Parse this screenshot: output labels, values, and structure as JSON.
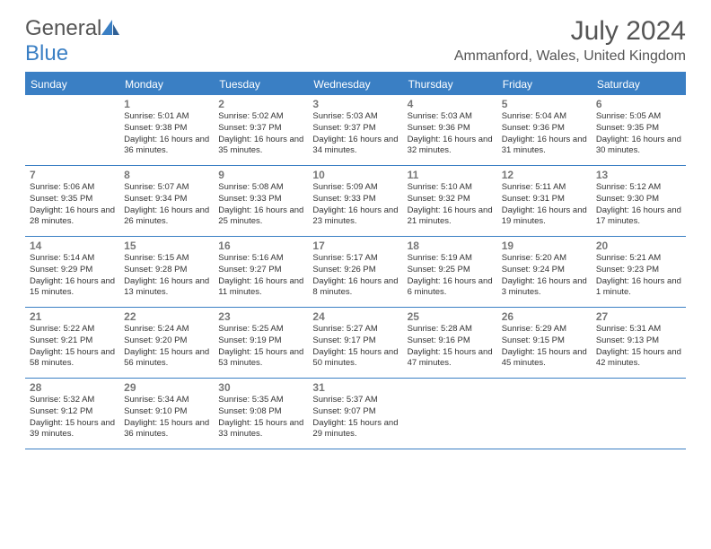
{
  "logo": {
    "text1": "General",
    "text2": "Blue"
  },
  "title": "July 2024",
  "location": "Ammanford, Wales, United Kingdom",
  "colors": {
    "header_bg": "#3a7fc4",
    "text": "#555555",
    "day_text": "#333333"
  },
  "dayNames": [
    "Sunday",
    "Monday",
    "Tuesday",
    "Wednesday",
    "Thursday",
    "Friday",
    "Saturday"
  ],
  "weeks": [
    [
      null,
      {
        "n": "1",
        "sr": "5:01 AM",
        "ss": "9:38 PM",
        "dl": "16 hours and 36 minutes."
      },
      {
        "n": "2",
        "sr": "5:02 AM",
        "ss": "9:37 PM",
        "dl": "16 hours and 35 minutes."
      },
      {
        "n": "3",
        "sr": "5:03 AM",
        "ss": "9:37 PM",
        "dl": "16 hours and 34 minutes."
      },
      {
        "n": "4",
        "sr": "5:03 AM",
        "ss": "9:36 PM",
        "dl": "16 hours and 32 minutes."
      },
      {
        "n": "5",
        "sr": "5:04 AM",
        "ss": "9:36 PM",
        "dl": "16 hours and 31 minutes."
      },
      {
        "n": "6",
        "sr": "5:05 AM",
        "ss": "9:35 PM",
        "dl": "16 hours and 30 minutes."
      }
    ],
    [
      {
        "n": "7",
        "sr": "5:06 AM",
        "ss": "9:35 PM",
        "dl": "16 hours and 28 minutes."
      },
      {
        "n": "8",
        "sr": "5:07 AM",
        "ss": "9:34 PM",
        "dl": "16 hours and 26 minutes."
      },
      {
        "n": "9",
        "sr": "5:08 AM",
        "ss": "9:33 PM",
        "dl": "16 hours and 25 minutes."
      },
      {
        "n": "10",
        "sr": "5:09 AM",
        "ss": "9:33 PM",
        "dl": "16 hours and 23 minutes."
      },
      {
        "n": "11",
        "sr": "5:10 AM",
        "ss": "9:32 PM",
        "dl": "16 hours and 21 minutes."
      },
      {
        "n": "12",
        "sr": "5:11 AM",
        "ss": "9:31 PM",
        "dl": "16 hours and 19 minutes."
      },
      {
        "n": "13",
        "sr": "5:12 AM",
        "ss": "9:30 PM",
        "dl": "16 hours and 17 minutes."
      }
    ],
    [
      {
        "n": "14",
        "sr": "5:14 AM",
        "ss": "9:29 PM",
        "dl": "16 hours and 15 minutes."
      },
      {
        "n": "15",
        "sr": "5:15 AM",
        "ss": "9:28 PM",
        "dl": "16 hours and 13 minutes."
      },
      {
        "n": "16",
        "sr": "5:16 AM",
        "ss": "9:27 PM",
        "dl": "16 hours and 11 minutes."
      },
      {
        "n": "17",
        "sr": "5:17 AM",
        "ss": "9:26 PM",
        "dl": "16 hours and 8 minutes."
      },
      {
        "n": "18",
        "sr": "5:19 AM",
        "ss": "9:25 PM",
        "dl": "16 hours and 6 minutes."
      },
      {
        "n": "19",
        "sr": "5:20 AM",
        "ss": "9:24 PM",
        "dl": "16 hours and 3 minutes."
      },
      {
        "n": "20",
        "sr": "5:21 AM",
        "ss": "9:23 PM",
        "dl": "16 hours and 1 minute."
      }
    ],
    [
      {
        "n": "21",
        "sr": "5:22 AM",
        "ss": "9:21 PM",
        "dl": "15 hours and 58 minutes."
      },
      {
        "n": "22",
        "sr": "5:24 AM",
        "ss": "9:20 PM",
        "dl": "15 hours and 56 minutes."
      },
      {
        "n": "23",
        "sr": "5:25 AM",
        "ss": "9:19 PM",
        "dl": "15 hours and 53 minutes."
      },
      {
        "n": "24",
        "sr": "5:27 AM",
        "ss": "9:17 PM",
        "dl": "15 hours and 50 minutes."
      },
      {
        "n": "25",
        "sr": "5:28 AM",
        "ss": "9:16 PM",
        "dl": "15 hours and 47 minutes."
      },
      {
        "n": "26",
        "sr": "5:29 AM",
        "ss": "9:15 PM",
        "dl": "15 hours and 45 minutes."
      },
      {
        "n": "27",
        "sr": "5:31 AM",
        "ss": "9:13 PM",
        "dl": "15 hours and 42 minutes."
      }
    ],
    [
      {
        "n": "28",
        "sr": "5:32 AM",
        "ss": "9:12 PM",
        "dl": "15 hours and 39 minutes."
      },
      {
        "n": "29",
        "sr": "5:34 AM",
        "ss": "9:10 PM",
        "dl": "15 hours and 36 minutes."
      },
      {
        "n": "30",
        "sr": "5:35 AM",
        "ss": "9:08 PM",
        "dl": "15 hours and 33 minutes."
      },
      {
        "n": "31",
        "sr": "5:37 AM",
        "ss": "9:07 PM",
        "dl": "15 hours and 29 minutes."
      },
      null,
      null,
      null
    ]
  ]
}
